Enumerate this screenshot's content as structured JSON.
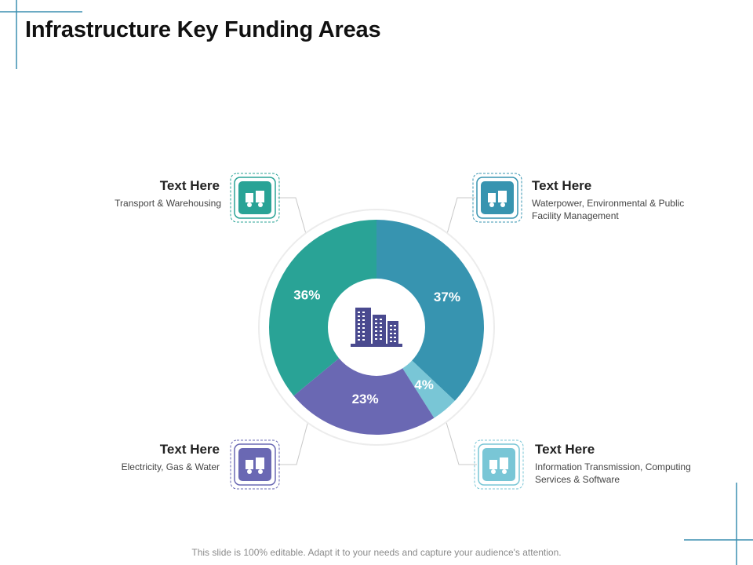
{
  "title": "Infrastructure Key Funding Areas",
  "footer": "This slide is 100% editable. Adapt it to your needs and capture your audience's attention.",
  "chart_data": {
    "type": "pie",
    "donut": true,
    "slices": [
      {
        "label": "Text Here",
        "description": "Waterpower, Environmental & Public Facility Management",
        "value": 37,
        "value_label": "37%",
        "color": "#3794b0",
        "icon": "water-facility-icon"
      },
      {
        "label": "Text Here",
        "description": "Information Transmission, Computing Services & Software",
        "value": 4,
        "value_label": "4%",
        "color": "#79c6d6",
        "icon": "computing-icon"
      },
      {
        "label": "Text Here",
        "description": "Electricity, Gas & Water",
        "value": 23,
        "value_label": "23%",
        "color": "#6a68b3",
        "icon": "utilities-icon"
      },
      {
        "label": "Text Here",
        "description": "Transport & Warehousing",
        "value": 36,
        "value_label": "36%",
        "color": "#29a396",
        "icon": "transport-icon"
      }
    ],
    "center_icon": "buildings-icon"
  },
  "colors": {
    "accent": "#3b8fb0"
  }
}
